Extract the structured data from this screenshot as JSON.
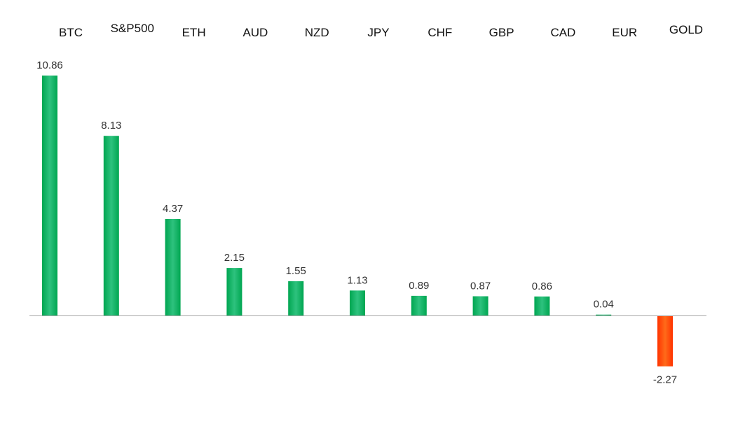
{
  "chart_data": {
    "type": "bar",
    "categories": [
      "BTC",
      "S&P500",
      "ETH",
      "AUD",
      "NZD",
      "JPY",
      "CHF",
      "GBP",
      "CAD",
      "EUR",
      "GOLD"
    ],
    "values": [
      10.86,
      8.13,
      4.37,
      2.15,
      1.55,
      1.13,
      0.89,
      0.87,
      0.86,
      0.04,
      -2.27
    ],
    "value_labels": [
      "10.86",
      "8.13",
      "4.37",
      "2.15",
      "1.55",
      "1.13",
      "0.89",
      "0.87",
      "0.86",
      "0.04",
      "-2.27"
    ],
    "title": "",
    "xlabel": "",
    "ylabel": "",
    "ylim": [
      -2.27,
      10.86
    ],
    "grid": false,
    "legend": "none",
    "colors": {
      "positive_dark": "#00a651",
      "positive_light": "#2ec27e",
      "negative_dark": "#ff3300",
      "negative_light": "#ff6a1a",
      "axis": "#a6a6a6"
    }
  }
}
